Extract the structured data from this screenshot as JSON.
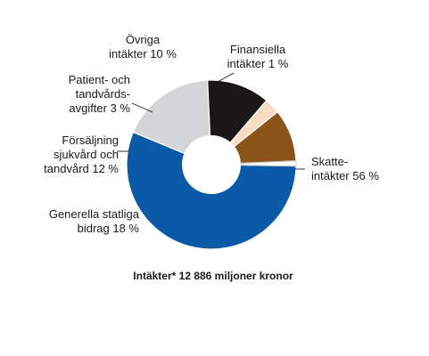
{
  "chart_data": {
    "type": "pie",
    "variant": "donut",
    "caption": "Intäkter* 12 886 miljoner kronor",
    "slices": [
      {
        "id": "skatt",
        "lines": [
          "Skatte-",
          "intäkter 56 %"
        ],
        "value": 56,
        "color": "#0a5aa8"
      },
      {
        "id": "statsbidrag",
        "lines": [
          "Generella statliga",
          "bidrag 18 %"
        ],
        "value": 18,
        "color": "#d4d5d7"
      },
      {
        "id": "forsaljning",
        "lines": [
          "Försäljning",
          "sjukvård och",
          "tandvård 12 %"
        ],
        "value": 12,
        "color": "#1b1718"
      },
      {
        "id": "patient",
        "lines": [
          "Patient- och",
          "tandvårds-",
          "avgifter 3 %"
        ],
        "value": 3,
        "color": "#f6dcc0"
      },
      {
        "id": "ovriga",
        "lines": [
          "Övriga",
          "intäkter 10 %"
        ],
        "value": 10,
        "color": "#8b5418"
      },
      {
        "id": "finansiella",
        "lines": [
          "Finansiella",
          "intäkter 1 %"
        ],
        "value": 1,
        "color": "#ffffff"
      }
    ]
  }
}
